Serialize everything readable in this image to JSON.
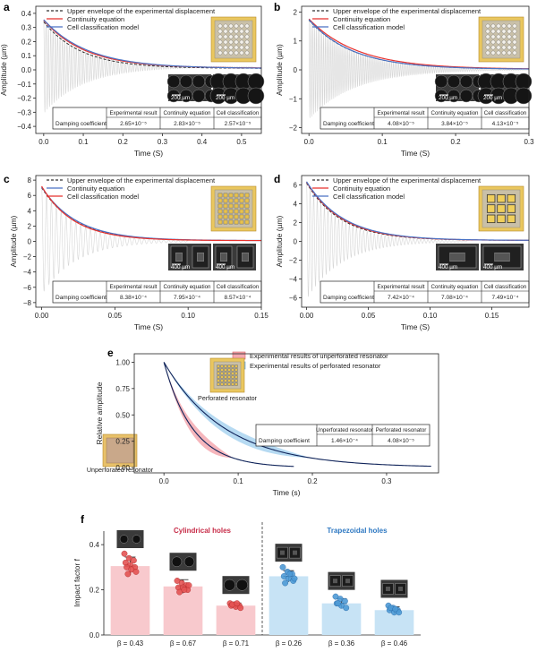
{
  "figure": {
    "colors": {
      "red": "#e8322e",
      "blue": "#4a72c4",
      "grey_signal": "#d6d6d6",
      "dark_curve": "#10245a",
      "pink_fill": "#f5a9b0",
      "lightblue_fill": "#a9d4f0",
      "pink_bar": "#f8c9cd",
      "blue_bar": "#c7e3f5",
      "red_dot": "#e55454",
      "blue_dot": "#4e9bd6",
      "cyl_title": "#c72c48",
      "trap_title": "#2e78c2",
      "gold": "#d6a843"
    },
    "panels": {
      "a": {
        "label": "a",
        "legend": [
          "Upper envelope of the experimental displacement",
          "Continuity equation",
          "Cell classification model"
        ],
        "table": {
          "row_label": "Damping coefficient",
          "headers": [
            "Experimental result",
            "Continuity equation",
            "Cell classification"
          ],
          "values": [
            "2.65×10⁻⁵",
            "2.83×10⁻⁵",
            "2.57×10⁻⁵"
          ]
        },
        "scale_labels": [
          "200 µm",
          "200 µm"
        ]
      },
      "b": {
        "label": "b",
        "legend": [
          "Upper envelope of the experimental displacement",
          "Continuity equation",
          "Cell classification model"
        ],
        "table": {
          "row_label": "Damping coefficient",
          "headers": [
            "Experimental result",
            "Continuity equation",
            "Cell classification"
          ],
          "values": [
            "4.08×10⁻⁵",
            "3.84×10⁻⁵",
            "4.13×10⁻⁵"
          ]
        },
        "scale_labels": [
          "200 µm",
          "200 µm"
        ]
      },
      "c": {
        "label": "c",
        "legend": [
          "Upper envelope of the experimental displacement",
          "Continuity equation",
          "Cell classification model"
        ],
        "table": {
          "row_label": "Damping coefficient",
          "headers": [
            "Experimental result",
            "Continuity equation",
            "Cell classification"
          ],
          "values": [
            "8.38×10⁻⁴",
            "7.95×10⁻⁴",
            "8.57×10⁻⁴"
          ]
        },
        "scale_labels": [
          "400 µm",
          "400 µm"
        ]
      },
      "d": {
        "label": "d",
        "legend": [
          "Upper envelope of the experimental displacement",
          "Continuity equation",
          "Cell classification model"
        ],
        "table": {
          "row_label": "Damping coefficient",
          "headers": [
            "Experimental result",
            "Continuity equation",
            "Cell classification"
          ],
          "values": [
            "7.42×10⁻⁴",
            "7.08×10⁻⁴",
            "7.49×10⁻⁴"
          ]
        },
        "scale_labels": [
          "400 µm",
          "400 µm"
        ]
      },
      "e": {
        "label": "e",
        "legend": [
          "Experimental results of unperforated resonator",
          "Experimental results of perforated resonator"
        ],
        "table": {
          "row_label": "Damping coefficient",
          "headers": [
            "Unperforated resonator",
            "Perforated resonator"
          ],
          "values": [
            "1.46×10⁻⁴",
            "4.08×10⁻⁵"
          ]
        },
        "image_labels": [
          "Perforated resonator",
          "Unperforated resonator"
        ]
      },
      "f": {
        "label": "f",
        "group_titles": [
          "Cylindrical holes",
          "Trapezoidal holes"
        ]
      }
    }
  },
  "chart_data": [
    {
      "id": "a",
      "type": "line",
      "xlabel": "Time (S)",
      "ylabel": "Amplitude (µm)",
      "xlim": [
        -0.02,
        0.55
      ],
      "ylim": [
        -0.45,
        0.45
      ],
      "xticks": [
        0.0,
        0.1,
        0.2,
        0.3,
        0.4,
        0.5
      ],
      "xtick_labels": [
        "0.0",
        "0.1",
        "0.2",
        "0.3",
        "0.4",
        "0.5"
      ],
      "yticks": [
        -0.4,
        -0.3,
        -0.2,
        -0.1,
        0.0,
        0.1,
        0.2,
        0.3,
        0.4
      ],
      "ytick_labels": [
        "−0.4",
        "−0.3",
        "−0.2",
        "−0.1",
        "0.0",
        "0.1",
        "0.2",
        "0.3",
        "0.4"
      ],
      "signal": {
        "amplitude": 0.33,
        "decay_time": 0.1,
        "offset": 0.02,
        "oscillations": 90,
        "t_end": 0.53
      },
      "series": [
        {
          "name": "Upper envelope of the experimental displacement",
          "style": "dashed",
          "A": 0.33,
          "tau": 0.095,
          "c": 0.01
        },
        {
          "name": "Continuity equation",
          "style": "red",
          "A": 0.34,
          "tau": 0.105,
          "c": 0.012
        },
        {
          "name": "Cell classification model",
          "style": "blue",
          "A": 0.345,
          "tau": 0.112,
          "c": 0.01
        }
      ]
    },
    {
      "id": "b",
      "type": "line",
      "xlabel": "Time (S)",
      "ylabel": "Amplitude (µm)",
      "xlim": [
        -0.01,
        0.3
      ],
      "ylim": [
        -2.2,
        2.2
      ],
      "xticks": [
        0.0,
        0.1,
        0.2,
        0.3
      ],
      "xtick_labels": [
        "0.0",
        "0.1",
        "0.2",
        "0.3"
      ],
      "yticks": [
        -2,
        -1,
        0,
        1,
        2
      ],
      "ytick_labels": [
        "−2",
        "−1",
        "0",
        "1",
        "2"
      ],
      "signal": {
        "amplitude": 1.72,
        "decay_time": 0.062,
        "offset": 0.0,
        "oscillations": 120,
        "t_end": 0.3
      },
      "series": [
        {
          "name": "Upper envelope of the experimental displacement",
          "style": "dashed",
          "A": 1.7,
          "tau": 0.06,
          "c": 0.02
        },
        {
          "name": "Continuity equation",
          "style": "red",
          "A": 1.74,
          "tau": 0.066,
          "c": 0.02
        },
        {
          "name": "Cell classification model",
          "style": "blue",
          "A": 1.72,
          "tau": 0.06,
          "c": 0.02
        }
      ]
    },
    {
      "id": "c",
      "type": "line",
      "xlabel": "Time (S)",
      "ylabel": "Amplitude (µm)",
      "xlim": [
        -0.004,
        0.15
      ],
      "ylim": [
        -8.6,
        8.6
      ],
      "xticks": [
        0.0,
        0.05,
        0.1,
        0.15
      ],
      "xtick_labels": [
        "0.00",
        "0.05",
        "0.10",
        "0.15"
      ],
      "yticks": [
        -8,
        -6,
        -4,
        -2,
        0,
        2,
        4,
        6,
        8
      ],
      "ytick_labels": [
        "−8",
        "−6",
        "−4",
        "−2",
        "0",
        "2",
        "4",
        "6",
        "8"
      ],
      "signal": {
        "amplitude": 7.0,
        "decay_time": 0.023,
        "offset": 0.0,
        "oscillations": 30,
        "t_end": 0.1
      },
      "series": [
        {
          "name": "Upper envelope of the experimental displacement",
          "style": "dashed",
          "A": 6.9,
          "tau": 0.023,
          "c": 0.1
        },
        {
          "name": "Continuity equation",
          "style": "blue",
          "A": 7.0,
          "tau": 0.024,
          "c": 0.1
        },
        {
          "name": "Cell classification model",
          "style": "red",
          "A": 7.1,
          "tau": 0.022,
          "c": 0.1
        }
      ]
    },
    {
      "id": "d",
      "type": "line",
      "xlabel": "Time (S)",
      "ylabel": "Amplitude (µm)",
      "xlim": [
        -0.004,
        0.18
      ],
      "ylim": [
        -7.0,
        7.0
      ],
      "xticks": [
        0.0,
        0.05,
        0.1,
        0.15
      ],
      "xtick_labels": [
        "0.00",
        "0.05",
        "0.10",
        "0.15"
      ],
      "yticks": [
        -6,
        -4,
        -2,
        0,
        2,
        4,
        6
      ],
      "ytick_labels": [
        "−6",
        "−4",
        "−2",
        "0",
        "2",
        "4",
        "6"
      ],
      "signal": {
        "amplitude": 6.2,
        "decay_time": 0.028,
        "offset": 0.0,
        "oscillations": 45,
        "t_end": 0.13
      },
      "series": [
        {
          "name": "Upper envelope of the experimental displacement",
          "style": "dashed",
          "A": 6.1,
          "tau": 0.028,
          "c": 0.1
        },
        {
          "name": "Continuity equation",
          "style": "red",
          "A": 6.2,
          "tau": 0.029,
          "c": 0.1
        },
        {
          "name": "Cell classification model",
          "style": "blue",
          "A": 6.25,
          "tau": 0.03,
          "c": 0.1
        }
      ]
    },
    {
      "id": "e",
      "type": "line",
      "xlabel": "Time (s)",
      "ylabel": "Relative amplitude",
      "xlim": [
        -0.04,
        0.37
      ],
      "ylim": [
        -0.05,
        1.08
      ],
      "xticks": [
        0.0,
        0.1,
        0.2,
        0.3
      ],
      "xtick_labels": [
        "0.0",
        "0.1",
        "0.2",
        "0.3"
      ],
      "yticks": [
        0.0,
        0.25,
        0.5,
        0.75,
        1.0
      ],
      "ytick_labels": [
        "0.00",
        "0.25",
        "0.50",
        "0.75",
        "1.00"
      ],
      "series": [
        {
          "name": "Experimental results of unperforated resonator",
          "color": "pink",
          "tau": 0.039,
          "t_end": 0.175,
          "band": 0.06
        },
        {
          "name": "Experimental results of perforated resonator",
          "color": "lightblue",
          "tau": 0.083,
          "t_end": 0.36,
          "band": 0.05
        }
      ]
    },
    {
      "id": "f",
      "type": "bar",
      "ylabel": "Impact factor f",
      "ylim": [
        0,
        0.46
      ],
      "yticks": [
        0.0,
        0.2,
        0.4
      ],
      "ytick_labels": [
        "0.0",
        "0.2",
        "0.4"
      ],
      "categories": [
        "β = 0.43",
        "β = 0.67",
        "β = 0.71",
        "β = 0.26",
        "β = 0.36",
        "β = 0.46"
      ],
      "groups": [
        "cylindrical",
        "cylindrical",
        "cylindrical",
        "trapezoidal",
        "trapezoidal",
        "trapezoidal"
      ],
      "values": [
        0.305,
        0.215,
        0.13,
        0.26,
        0.14,
        0.11
      ],
      "errors": [
        0.04,
        0.03,
        0.012,
        0.025,
        0.02,
        0.015
      ],
      "points": [
        [
          0.36,
          0.34,
          0.33,
          0.32,
          0.31,
          0.3,
          0.3,
          0.29,
          0.28,
          0.27
        ],
        [
          0.24,
          0.23,
          0.22,
          0.21,
          0.21,
          0.2,
          0.19,
          0.2,
          0.22
        ],
        [
          0.14,
          0.135,
          0.13,
          0.13,
          0.125,
          0.12,
          0.135,
          0.14
        ],
        [
          0.3,
          0.28,
          0.27,
          0.26,
          0.25,
          0.24,
          0.23,
          0.27,
          0.25
        ],
        [
          0.17,
          0.16,
          0.15,
          0.14,
          0.13,
          0.12,
          0.14
        ],
        [
          0.13,
          0.12,
          0.11,
          0.11,
          0.1,
          0.1,
          0.12,
          0.115
        ]
      ]
    }
  ]
}
